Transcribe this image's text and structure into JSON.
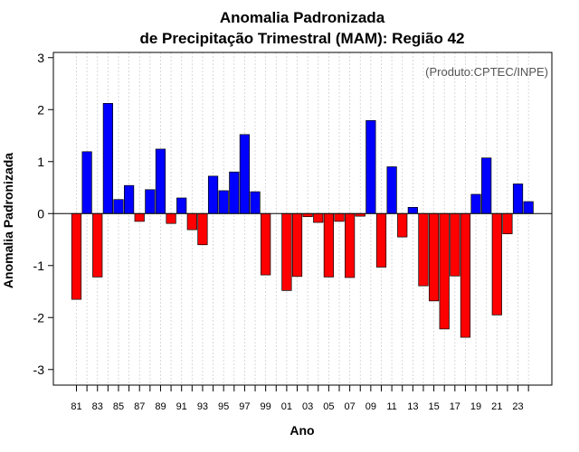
{
  "chart_data": {
    "type": "bar",
    "title_line1": "Anomalia Padronizada",
    "title_line2": "de Precipitação Trimestral (MAM): Região 42",
    "xlabel": "Ano",
    "ylabel": "Anomalia Padronizada",
    "credit": "(Produto:CPTEC/INPE)",
    "ylim": [
      -3.3,
      3.1
    ],
    "yticks": [
      -3,
      -2,
      -1,
      0,
      1,
      2,
      3
    ],
    "ytick_labels": [
      "-3",
      "-2",
      "-1",
      "0",
      "1",
      "2",
      "3"
    ],
    "xtick_labels": [
      "81",
      "83",
      "85",
      "87",
      "89",
      "91",
      "93",
      "95",
      "97",
      "99",
      "01",
      "03",
      "05",
      "07",
      "09",
      "11",
      "13",
      "15",
      "17",
      "19",
      "21",
      "23"
    ],
    "grid": true,
    "positive_color": "#0000ff",
    "negative_color": "#ff0000",
    "categories": [
      "1981",
      "1982",
      "1983",
      "1984",
      "1985",
      "1986",
      "1987",
      "1988",
      "1989",
      "1990",
      "1991",
      "1992",
      "1993",
      "1994",
      "1995",
      "1996",
      "1997",
      "1998",
      "1999",
      "2000",
      "2001",
      "2002",
      "2003",
      "2004",
      "2005",
      "2006",
      "2007",
      "2008",
      "2009",
      "2010",
      "2011",
      "2012",
      "2013",
      "2014",
      "2015",
      "2016",
      "2017",
      "2018",
      "2019",
      "2020",
      "2021",
      "2022",
      "2023",
      "2024"
    ],
    "values": [
      -1.65,
      1.19,
      -1.22,
      2.12,
      0.27,
      0.54,
      -0.15,
      0.46,
      1.24,
      -0.19,
      0.3,
      -0.31,
      -0.6,
      0.72,
      0.44,
      0.8,
      1.52,
      0.42,
      -1.18,
      0.0,
      -1.48,
      -1.21,
      -0.06,
      -0.17,
      -1.22,
      -0.15,
      -1.23,
      -0.05,
      1.79,
      -1.03,
      0.9,
      -0.45,
      0.12,
      -1.39,
      -1.68,
      -2.22,
      -1.2,
      -2.38,
      0.37,
      1.07,
      -1.95,
      -0.39,
      0.57,
      0.23
    ]
  }
}
